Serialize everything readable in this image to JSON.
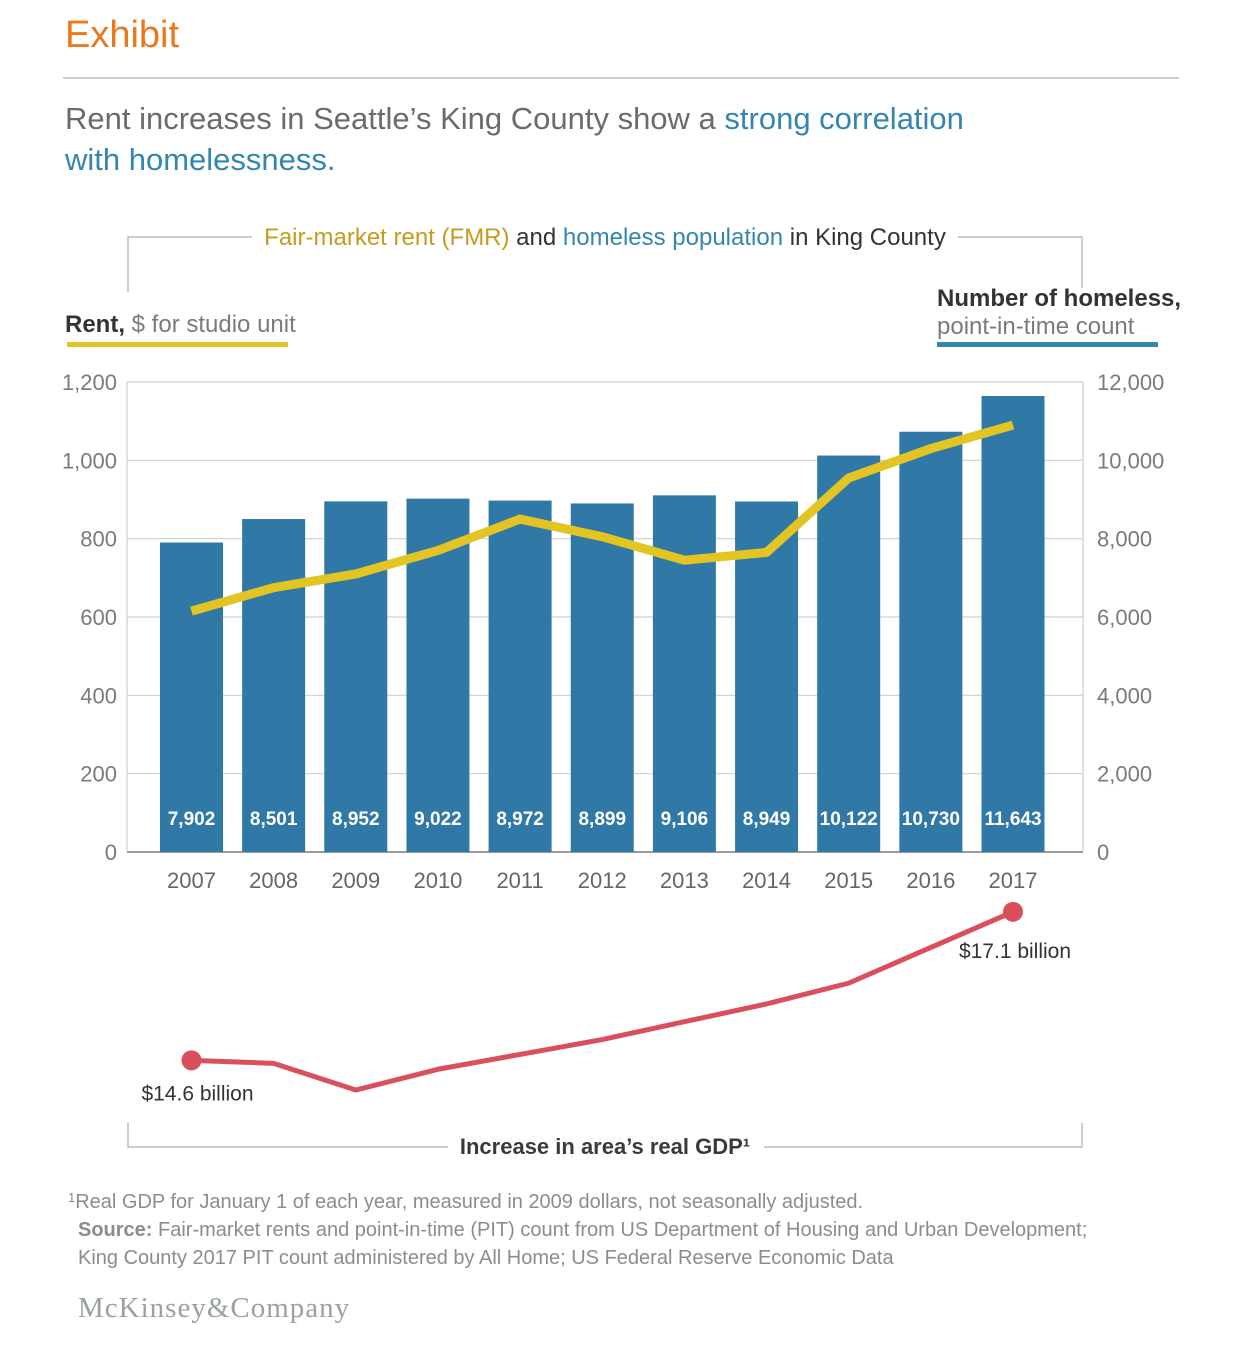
{
  "colors": {
    "orange": "#E8791E",
    "blue_text": "#3486AF",
    "gold_text": "#C49B1E",
    "bar_blue": "#3079A6",
    "yellow": "#E2C522",
    "red": "#D9505C",
    "grid": "#CFCFCF"
  },
  "header": {
    "exhibit": "Exhibit",
    "title_plain": "Rent increases in Seattle’s King County show a ",
    "title_highlight_line1": "strong correlation",
    "title_highlight_line2": "with homelessness."
  },
  "chart_header": {
    "fmr": "Fair-market rent (FMR)",
    "and": " and ",
    "homeless": "homeless population",
    "suffix": " in King County"
  },
  "left_axis": {
    "title_bold": "Rent,",
    "title_rest": " $ for studio unit",
    "ticks": [
      "1,200",
      "1,000",
      "800",
      "600",
      "400",
      "200",
      "0"
    ]
  },
  "right_axis": {
    "title_bold": "Number of homeless,",
    "title_line2": "point-in-time count",
    "ticks": [
      "12,000",
      "10,000",
      "8,000",
      "6,000",
      "4,000",
      "2,000",
      "0"
    ]
  },
  "chart_data": {
    "type": "combo",
    "categories": [
      "2007",
      "2008",
      "2009",
      "2010",
      "2011",
      "2012",
      "2013",
      "2014",
      "2015",
      "2016",
      "2017"
    ],
    "left_ylim": [
      0,
      1200
    ],
    "right_ylim": [
      0,
      12000
    ],
    "gdp_ylim": [
      14.0,
      17.4
    ],
    "grid": "horizontal",
    "series": [
      {
        "name": "Homeless population, point-in-time count",
        "type": "bar",
        "axis": "right",
        "color_key": "bar_blue",
        "values": [
          7902,
          8501,
          8952,
          9022,
          8972,
          8899,
          9106,
          8949,
          10122,
          10730,
          11643
        ],
        "labels": [
          "7,902",
          "8,501",
          "8,952",
          "9,022",
          "8,972",
          "8,899",
          "9,106",
          "8,949",
          "10,122",
          "10,730",
          "11,643"
        ]
      },
      {
        "name": "Fair-market rent (FMR), $ for studio unit",
        "type": "line",
        "axis": "left",
        "color_key": "yellow",
        "values": [
          615,
          675,
          710,
          770,
          850,
          805,
          745,
          765,
          955,
          1030,
          1090
        ]
      },
      {
        "name": "Increase in area’s real GDP, $ billion",
        "type": "line",
        "axis": "gdp",
        "color_key": "red",
        "values": [
          14.6,
          14.55,
          14.1,
          14.45,
          14.7,
          14.95,
          15.25,
          15.55,
          15.9,
          16.5,
          17.1
        ]
      }
    ]
  },
  "gdp": {
    "label": "Increase in area’s real GDP¹",
    "start_label": "$14.6 billion",
    "end_label": "$17.1 billion"
  },
  "footnote": {
    "sup": "1",
    "line1": "Real GDP for January 1 of each year, measured in 2009 dollars, not seasonally adjusted.",
    "source_label": "Source:",
    "source_line1": " Fair-market rents and point-in-time (PIT) count from US Department of Housing and Urban Development;",
    "source_line2": "King County 2017 PIT count administered by All Home; US Federal Reserve Economic Data"
  },
  "logo": "McKinsey&Company"
}
